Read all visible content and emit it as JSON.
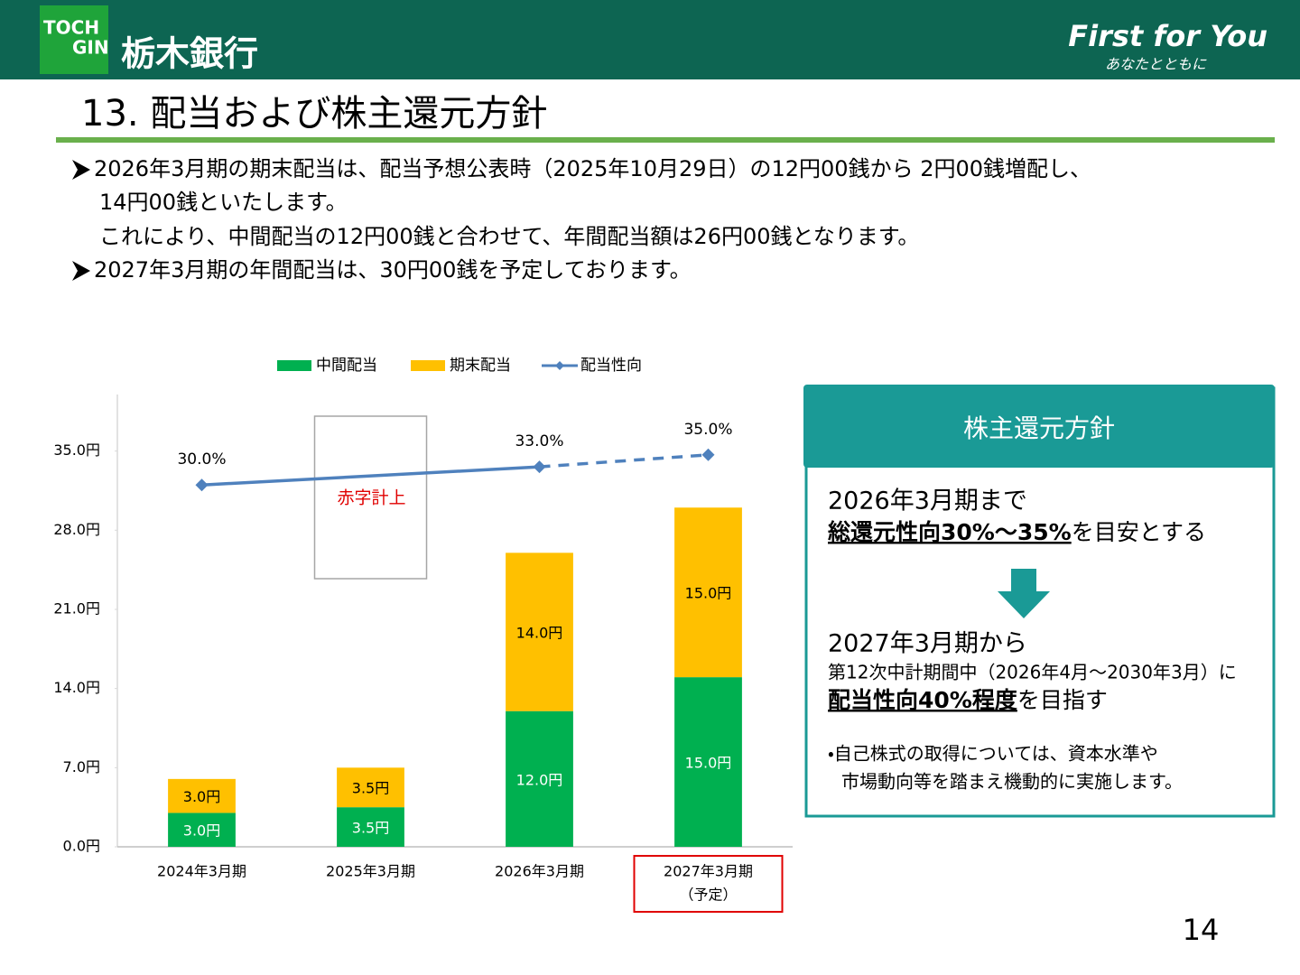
{
  "header": {
    "logo": [
      "TOCH",
      "GIN"
    ],
    "bank_name": "栃木銀行",
    "slogan": "First for You",
    "slogan_sub": "あなたとともに"
  },
  "title": "13. 配当および株主還元方針",
  "bullets": [
    [
      "2026年3月期の期末配当は、配当予想公表時（2025年10月29日）の12円00銭から 2円00銭増配し、",
      "14円00銭といたします。",
      "これにより、中間配当の12円00銭と合わせて、年間配当額は26円00銭となります。"
    ],
    [
      "2027年3月期の年間配当は、30円00銭を予定しております。"
    ]
  ],
  "chart_data": {
    "type": "bar",
    "stacked": true,
    "categories": [
      "2024年3月期",
      "2025年3月期",
      "2026年3月期",
      "2027年3月期"
    ],
    "category_note": "（予定）",
    "annotation": "赤字計上",
    "ylim": [
      0,
      40
    ],
    "yticks": [
      {
        "value": 0,
        "label": "0.0円"
      },
      {
        "value": 7,
        "label": "7.0円"
      },
      {
        "value": 14,
        "label": "14.0円"
      },
      {
        "value": 21,
        "label": "21.0円"
      },
      {
        "value": 28,
        "label": "28.0円"
      },
      {
        "value": 35,
        "label": "35.0円"
      }
    ],
    "y2lim": [
      -30,
      45
    ],
    "series": [
      {
        "name": "中間配当",
        "type": "bar",
        "color": "#00b050",
        "values": [
          3.0,
          3.5,
          12.0,
          15.0
        ],
        "value_labels": [
          "3.0円",
          "3.5円",
          "12.0円",
          "15.0円"
        ]
      },
      {
        "name": "期末配当",
        "type": "bar",
        "color": "#ffc000",
        "values": [
          3.0,
          3.5,
          14.0,
          15.0
        ],
        "value_labels": [
          "3.0円",
          "3.5円",
          "14.0円",
          "15.0円"
        ]
      },
      {
        "name": "配当性向",
        "type": "line",
        "axis": "y2",
        "color": "#4f81bd",
        "dash_from": 2,
        "values": [
          30.0,
          null,
          33.0,
          35.0
        ],
        "value_labels": [
          "30.0%",
          null,
          "33.0%",
          "35.0%"
        ]
      }
    ]
  },
  "policy_box": {
    "title": "株主還元方針",
    "until": "2026年3月期まで",
    "until_target": "総還元性向30%～35%",
    "until_rest": "を目安とする",
    "from": "2027年3月期から",
    "from_period": "第12次中計期間中（2026年4月～2030年3月）に",
    "from_target": "配当性向40%程度",
    "from_rest": "を目指す",
    "note": [
      "・自己株式の取得については、資本水準や",
      "市場動向等を踏まえ機動的に実施します。"
    ]
  },
  "page_number": "14"
}
